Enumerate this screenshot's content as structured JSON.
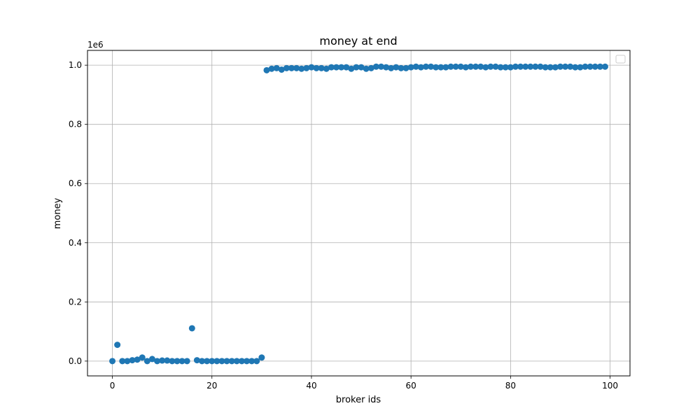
{
  "chart_data": {
    "type": "scatter",
    "title": "money at end",
    "xlabel": "broker ids",
    "ylabel": "money",
    "y_offset_label": "1e6",
    "xlim": [
      -5,
      104
    ],
    "ylim": [
      -0.05,
      1.05
    ],
    "x_ticks": [
      0,
      20,
      40,
      60,
      80,
      100
    ],
    "y_ticks": [
      0.0,
      0.2,
      0.4,
      0.6,
      0.8,
      1.0
    ],
    "x_tick_labels": [
      "0",
      "20",
      "40",
      "60",
      "80",
      "100"
    ],
    "y_tick_labels": [
      "0.0",
      "0.2",
      "0.4",
      "0.6",
      "0.8",
      "1.0"
    ],
    "grid": true,
    "legend": "top-right (empty)",
    "marker_color": "#1f77b4",
    "x": [
      0,
      1,
      2,
      3,
      4,
      5,
      6,
      7,
      8,
      9,
      10,
      11,
      12,
      13,
      14,
      15,
      16,
      17,
      18,
      19,
      20,
      21,
      22,
      23,
      24,
      25,
      26,
      27,
      28,
      29,
      30,
      31,
      32,
      33,
      34,
      35,
      36,
      37,
      38,
      39,
      40,
      41,
      42,
      43,
      44,
      45,
      46,
      47,
      48,
      49,
      50,
      51,
      52,
      53,
      54,
      55,
      56,
      57,
      58,
      59,
      60,
      61,
      62,
      63,
      64,
      65,
      66,
      67,
      68,
      69,
      70,
      71,
      72,
      73,
      74,
      75,
      76,
      77,
      78,
      79,
      80,
      81,
      82,
      83,
      84,
      85,
      86,
      87,
      88,
      89,
      90,
      91,
      92,
      93,
      94,
      95,
      96,
      97,
      98,
      99
    ],
    "y": [
      0.0,
      0.055,
      0.0,
      0.0,
      0.003,
      0.005,
      0.012,
      0.0,
      0.007,
      0.0,
      0.002,
      0.002,
      0.0,
      0.0,
      0.0,
      0.0,
      0.111,
      0.003,
      0.0,
      0.0,
      0.0,
      0.0,
      0.0,
      0.0,
      0.0,
      0.0,
      0.0,
      0.0,
      0.0,
      0.0,
      0.012,
      0.983,
      0.988,
      0.99,
      0.985,
      0.99,
      0.99,
      0.99,
      0.988,
      0.99,
      0.993,
      0.99,
      0.99,
      0.988,
      0.993,
      0.993,
      0.993,
      0.993,
      0.988,
      0.993,
      0.993,
      0.988,
      0.99,
      0.995,
      0.995,
      0.993,
      0.99,
      0.993,
      0.99,
      0.99,
      0.993,
      0.995,
      0.993,
      0.995,
      0.995,
      0.993,
      0.993,
      0.993,
      0.995,
      0.995,
      0.995,
      0.993,
      0.995,
      0.995,
      0.995,
      0.993,
      0.995,
      0.995,
      0.993,
      0.993,
      0.993,
      0.995,
      0.995,
      0.995,
      0.995,
      0.995,
      0.995,
      0.993,
      0.993,
      0.993,
      0.995,
      0.995,
      0.995,
      0.993,
      0.993,
      0.995,
      0.995,
      0.995,
      0.995,
      0.995
    ]
  }
}
